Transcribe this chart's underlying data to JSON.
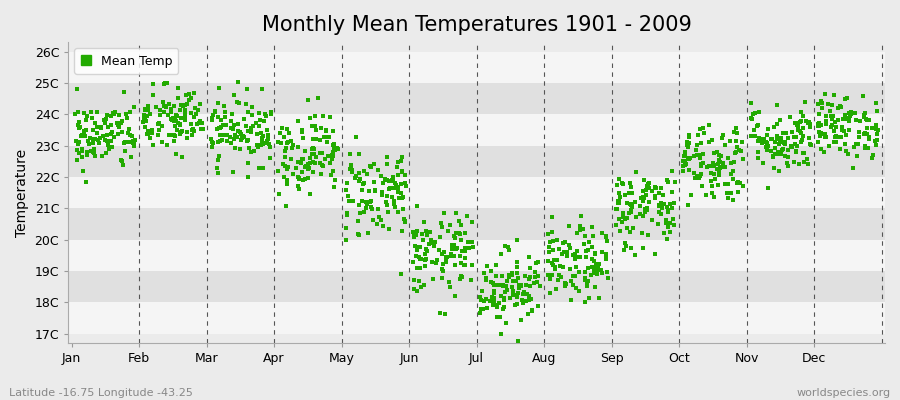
{
  "title": "Monthly Mean Temperatures 1901 - 2009",
  "ylabel": "Temperature",
  "xlabel_lat_lon": "Latitude -16.75 Longitude -43.25",
  "watermark": "worldspecies.org",
  "legend_label": "Mean Temp",
  "dot_color": "#22AA00",
  "dot_marker": "s",
  "dot_size": 5,
  "bg_color": "#EBEBEB",
  "plot_bg_color": "#EBEBEB",
  "band_light": "#F5F5F5",
  "band_dark": "#E0E0E0",
  "ytick_labels": [
    "17C",
    "18C",
    "19C",
    "20C",
    "21C",
    "22C",
    "23C",
    "24C",
    "25C",
    "26C"
  ],
  "ytick_values": [
    17,
    18,
    19,
    20,
    21,
    22,
    23,
    24,
    25,
    26
  ],
  "ylim": [
    16.7,
    26.3
  ],
  "months": [
    "Jan",
    "Feb",
    "Mar",
    "Apr",
    "May",
    "Jun",
    "Jul",
    "Aug",
    "Sep",
    "Oct",
    "Nov",
    "Dec"
  ],
  "month_tick_positions": [
    0,
    1,
    2,
    3,
    4,
    5,
    6,
    7,
    8,
    9,
    10,
    11
  ],
  "month_boundaries": [
    0,
    1,
    2,
    3,
    4,
    5,
    6,
    7,
    8,
    9,
    10,
    11,
    12
  ],
  "xlim": [
    -0.05,
    12.05
  ],
  "seed": 42,
  "n_years": 109,
  "monthly_means": [
    23.3,
    23.8,
    23.5,
    22.8,
    21.5,
    19.5,
    18.5,
    19.2,
    21.0,
    22.5,
    23.2,
    23.6
  ],
  "monthly_stds": [
    0.55,
    0.55,
    0.55,
    0.65,
    0.75,
    0.65,
    0.6,
    0.6,
    0.65,
    0.65,
    0.55,
    0.5
  ],
  "title_fontsize": 15,
  "axis_label_fontsize": 10,
  "tick_fontsize": 9,
  "legend_fontsize": 9,
  "dashed_line_color": "#555555",
  "spine_color": "#AAAAAA"
}
